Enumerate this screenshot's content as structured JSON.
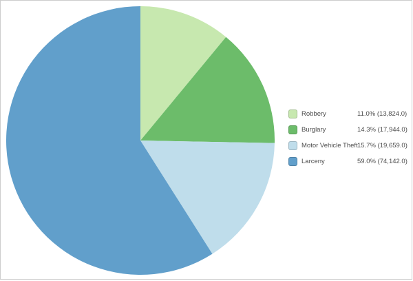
{
  "chart_data": {
    "type": "pie",
    "start_angle_deg": 0,
    "direction": "clockwise",
    "legend_position": "right",
    "slices": [
      {
        "label": "Robbery",
        "percent": 11.0,
        "value": 13824.0,
        "value_text": "11.0% (13,824.0)",
        "color": "#c7e8af"
      },
      {
        "label": "Burglary",
        "percent": 14.3,
        "value": 17944.0,
        "value_text": "14.3% (17,944.0)",
        "color": "#6cbc6a"
      },
      {
        "label": "Motor Vehicle Theft",
        "percent": 15.7,
        "value": 19659.0,
        "value_text": "15.7% (19,659.0)",
        "color": "#bfddeb"
      },
      {
        "label": "Larceny",
        "percent": 59.0,
        "value": 74142.0,
        "value_text": "59.0% (74,142.0)",
        "color": "#619fcb"
      }
    ]
  },
  "frame": {
    "border_color": "#cccccc",
    "background_color": "#ffffff"
  }
}
